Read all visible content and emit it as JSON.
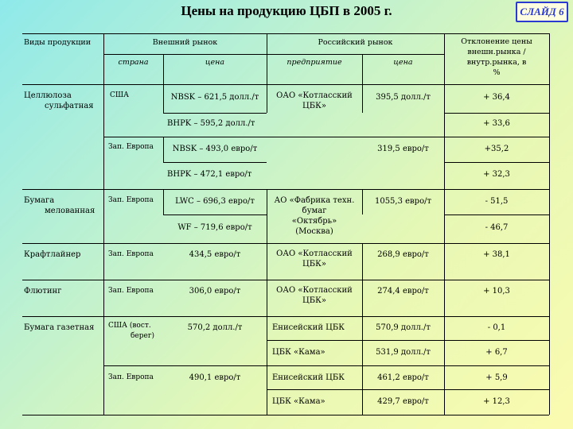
{
  "title": "Цены на продукцию ЦБП в 2005 г.",
  "slide_label": "СЛАЙД 6",
  "headers": {
    "products": "Виды продукции",
    "external_market": "Внешний рынок",
    "country": "страна",
    "price_ext": "цена",
    "russian_market": "Российский рынок",
    "enterprise": "предприятие",
    "price_rus": "цена",
    "deviation": [
      "Отклонение цены",
      "внешн.рынка /",
      "внутр.рынка, в",
      "%"
    ]
  },
  "rows": {
    "cellulose": {
      "product": [
        "Целлюлоза",
        "сульфатная"
      ],
      "country_usa": "США",
      "nbsk_usa": "NBSK – 621,5 долл./т",
      "bhpk_usa": "BHPK – 595,2 долл./т",
      "enterprise": [
        "ОАО  «Котласский",
        "ЦБК»"
      ],
      "price_rus_usd": "395,5 долл./т",
      "dev1": "+ 36,4",
      "dev2": "+ 33,6",
      "country_eu": "Зап. Европа",
      "nbsk_eu": "NBSK – 493,0 евро/т",
      "bhpk_eu": "BHPK – 472,1 евро/т",
      "price_rus_eur": "319,5 евро/т",
      "dev3": "+35,2",
      "dev4": "+ 32,3"
    },
    "coated": {
      "product": [
        "Бумага",
        "мелованная"
      ],
      "country": "Зап. Европа",
      "lwc": "LWC – 696,3 евро/т",
      "wf": "WF – 719,6 евро/т",
      "enterprise": [
        "АО «Фабрика техн.",
        "бумаг",
        "«Октябрь»",
        "(Москва)"
      ],
      "price_rus": "1055,3 евро/т",
      "dev1": "- 51,5",
      "dev2": "- 46,7"
    },
    "kraftliner": {
      "product": "Крафтлайнер",
      "country": "Зап. Европа",
      "price_ext": "434,5 евро/т",
      "enterprise": [
        "ОАО  «Котласский",
        "ЦБК»"
      ],
      "price_rus": "268,9 евро/т",
      "dev": "+ 38,1"
    },
    "fluting": {
      "product": "Флютинг",
      "country": "Зап. Европа",
      "price_ext": "306,0 евро/т",
      "enterprise": [
        "ОАО  «Котласский",
        "ЦБК»"
      ],
      "price_rus": "274,4  евро/т",
      "dev": "+ 10,3"
    },
    "newsprint": {
      "product": "Бумага газетная",
      "country_usa": [
        "США (вост.",
        "берег)"
      ],
      "price_usa": "570,2 долл./т",
      "ent1": "Енисейский ЦБК",
      "price1": "570,9 долл./т",
      "dev1": "- 0,1",
      "ent2": "ЦБК «Кама»",
      "price2": "531,9 долл./т",
      "dev2": "+ 6,7",
      "country_eu": "Зап. Европа",
      "price_eu": "490,1 евро/т",
      "ent3": "Енисейский ЦБК",
      "price3": "461,2 евро/т",
      "dev3": "+ 5,9",
      "ent4": "ЦБК «Кама»",
      "price4": "429,7 евро/т",
      "dev4": "+ 12,3"
    }
  }
}
